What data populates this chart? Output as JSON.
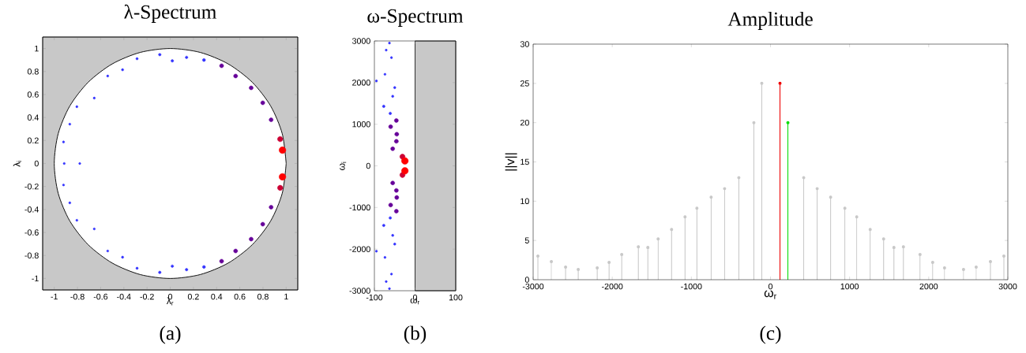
{
  "chart_data": [
    {
      "type": "bubble",
      "title": "λ-Spectrum",
      "xlabel": "λ$_{r}$",
      "ylabel": "λ$_{i}$",
      "annotations": [
        "(a)"
      ],
      "bands": [
        {
          "axis": "x",
          "from": -1.1,
          "to": 1.1,
          "color": "#c8c8c8"
        }
      ],
      "xlim": [
        -1.1,
        1.1
      ],
      "ylim": [
        -1.1,
        1.1
      ],
      "xticks": [
        -1,
        -0.8,
        -0.6,
        -0.4,
        -0.2,
        0,
        0.2,
        0.4,
        0.6,
        0.8,
        1
      ],
      "yticks": [
        -1,
        -0.8,
        -0.6,
        -0.4,
        -0.2,
        0,
        0.2,
        0.4,
        0.6,
        0.8,
        1
      ],
      "series": [
        {
          "type": "area",
          "color": "#ffffff",
          "x": [
            1,
            0.966,
            0.866,
            0.707,
            0.5,
            0.259,
            0,
            -0.259,
            -0.5,
            -0.707,
            -0.866,
            -0.966,
            -1,
            -0.966,
            -0.866,
            -0.707,
            -0.5,
            -0.259,
            0,
            0.259,
            0.5,
            0.707,
            0.866,
            0.966,
            1
          ],
          "values": [
            0,
            0.259,
            0.5,
            0.707,
            0.866,
            0.966,
            1,
            0.966,
            0.866,
            0.707,
            0.5,
            0.259,
            0,
            -0.259,
            -0.5,
            -0.707,
            -0.866,
            -0.966,
            -1,
            -0.966,
            -0.866,
            -0.707,
            -0.5,
            -0.259,
            0
          ]
        },
        {
          "color": "#3333ff",
          "x": [
            -0.09,
            0.018,
            0.141,
            0.291,
            -0.286,
            -0.411,
            -0.539,
            -0.655,
            -0.805,
            -0.866,
            -0.92,
            -0.914,
            -0.78,
            -0.09,
            0.018,
            0.141,
            0.291,
            -0.286,
            -0.411,
            -0.539,
            -0.655,
            -0.805,
            -0.866,
            -0.92
          ],
          "values": [
            0.947,
            0.893,
            0.923,
            0.9,
            0.911,
            0.815,
            0.761,
            0.569,
            0.494,
            0.342,
            0.187,
            0,
            0,
            -0.947,
            -0.893,
            -0.923,
            -0.9,
            -0.911,
            -0.815,
            -0.761,
            -0.569,
            -0.494,
            -0.342,
            -0.187
          ],
          "sizes": [
            0.15,
            0.15,
            0.15,
            0.2,
            0.12,
            0.12,
            0.1,
            0.1,
            0.1,
            0.1,
            0.1,
            0.1,
            0.1,
            0.15,
            0.15,
            0.15,
            0.2,
            0.12,
            0.12,
            0.1,
            0.1,
            0.1,
            0.1,
            0.1
          ]
        },
        {
          "color": "#660099",
          "x": [
            0.443,
            0.564,
            0.698,
            0.798,
            0.87,
            0.443,
            0.564,
            0.698,
            0.798,
            0.87
          ],
          "values": [
            0.85,
            0.761,
            0.658,
            0.528,
            0.38,
            -0.85,
            -0.761,
            -0.658,
            -0.528,
            -0.38
          ],
          "sizes": [
            0.35,
            0.35,
            0.35,
            0.35,
            0.35,
            0.35,
            0.35,
            0.35,
            0.35,
            0.35
          ]
        },
        {
          "color": "#cc0033",
          "x": [
            0.948,
            0.948
          ],
          "values": [
            0.212,
            -0.212
          ],
          "sizes": [
            0.6,
            0.6
          ]
        },
        {
          "color": "#ff0000",
          "x": [
            0.968,
            0.968
          ],
          "values": [
            0.116,
            -0.116
          ],
          "sizes": [
            1,
            1
          ]
        }
      ]
    },
    {
      "type": "bubble",
      "title": "ω-Spectrum",
      "xlabel": "ω$_{r}$",
      "ylabel": "ω$_{i}$",
      "annotations": [
        "(b)"
      ],
      "xlim": [
        -100,
        100
      ],
      "ylim": [
        -3000,
        3000
      ],
      "xticks": [
        -100,
        0,
        100
      ],
      "yticks": [
        -3000,
        -2000,
        -1000,
        0,
        1000,
        2000,
        3000
      ],
      "bands": [
        {
          "axis": "x",
          "from": 0,
          "to": 100,
          "color": "#c8c8c8"
        }
      ],
      "series": [
        {
          "color": "#3333ff",
          "x": [
            -63,
            -71,
            -58,
            -74,
            -95,
            -50,
            -55,
            -77,
            -61,
            -63,
            -71,
            -58,
            -74,
            -95,
            -50,
            -55,
            -77,
            -61
          ],
          "values": [
            2950,
            2780,
            2600,
            2200,
            2040,
            1880,
            1670,
            1430,
            1260,
            -2950,
            -2780,
            -2600,
            -2200,
            -2050,
            -1880,
            -1670,
            -1430,
            -1250
          ],
          "sizes": [
            0.1,
            0.1,
            0.1,
            0.1,
            0.1,
            0.12,
            0.12,
            0.15,
            0.15,
            0.1,
            0.1,
            0.1,
            0.1,
            0.1,
            0.12,
            0.12,
            0.15,
            0.15
          ]
        },
        {
          "color": "#660099",
          "x": [
            -46,
            -60,
            -45,
            -46,
            -55,
            -55,
            -46,
            -45,
            -60,
            -46
          ],
          "values": [
            1090,
            940,
            760,
            590,
            410,
            -410,
            -590,
            -760,
            -940,
            -1090
          ],
          "sizes": [
            0.35,
            0.35,
            0.35,
            0.35,
            0.35,
            0.35,
            0.35,
            0.35,
            0.35,
            0.35
          ]
        },
        {
          "color": "#cc0033",
          "x": [
            -31,
            -31
          ],
          "values": [
            220,
            -220
          ],
          "sizes": [
            0.6,
            0.6
          ]
        },
        {
          "color": "#ff0000",
          "x": [
            -25,
            -25
          ],
          "values": [
            120,
            -120
          ],
          "sizes": [
            1,
            1
          ]
        }
      ]
    },
    {
      "type": "lollipop",
      "title": "Amplitude",
      "xlabel": "ω$_{r}$",
      "ylabel": "||v||",
      "annotations": [
        "(c)"
      ],
      "marker": "circle",
      "xlim": [
        -3000,
        3000
      ],
      "ylim": [
        0,
        30
      ],
      "xticks": [
        -3000,
        -2000,
        -1000,
        0,
        1000,
        2000,
        3000
      ],
      "yticks": [
        0,
        5,
        10,
        15,
        20,
        25,
        30
      ],
      "series": [
        {
          "color": "#c8c8c8",
          "x": [
            -2940,
            -2770,
            -2590,
            -2430,
            -2190,
            -2040,
            -1880,
            -1670,
            -1550,
            -1420,
            -1250,
            -1080,
            -930,
            -750,
            -580,
            -400,
            -210,
            -110,
            420,
            590,
            760,
            940,
            1090,
            1260,
            1430,
            1560,
            1680,
            1890,
            2050,
            2200,
            2440,
            2600,
            2780,
            2950
          ],
          "values": [
            3,
            2.3,
            1.6,
            1.3,
            1.5,
            2.2,
            3.2,
            4.2,
            4.1,
            5.2,
            6.4,
            8,
            9.1,
            10.5,
            11.6,
            13,
            20,
            25,
            13,
            11.6,
            10.5,
            9.1,
            8,
            6.4,
            5.2,
            4.1,
            4.2,
            3.2,
            2.2,
            1.5,
            1.3,
            1.6,
            2.3,
            3
          ]
        },
        {
          "color": "#ee0000",
          "x": [
            120
          ],
          "values": [
            25
          ]
        },
        {
          "color": "#00dd00",
          "x": [
            220
          ],
          "values": [
            20
          ]
        }
      ]
    }
  ]
}
